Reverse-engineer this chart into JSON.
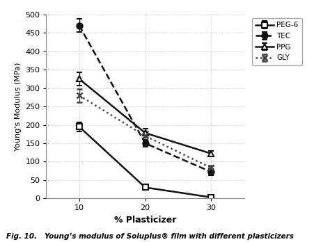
{
  "x_values": [
    10,
    20,
    30
  ],
  "series_order": [
    "PEG-6",
    "TEC",
    "PPG",
    "GLY"
  ],
  "series": {
    "PEG-6": {
      "y": [
        195,
        30,
        3
      ],
      "yerr": [
        12,
        4,
        2
      ],
      "color": "#111111",
      "linestyle": "-",
      "marker": "s",
      "markerfacecolor": "white",
      "markeredgewidth": 1.5,
      "label": "PEG-6"
    },
    "TEC": {
      "y": [
        470,
        150,
        72
      ],
      "yerr": [
        18,
        10,
        8
      ],
      "color": "#111111",
      "linestyle": "--",
      "marker": "o",
      "markerfacecolor": "#111111",
      "markeredgewidth": 1.5,
      "label": "TEC"
    },
    "PPG": {
      "y": [
        325,
        178,
        122
      ],
      "yerr": [
        18,
        12,
        7
      ],
      "color": "#111111",
      "linestyle": "-",
      "marker": "^",
      "markerfacecolor": "white",
      "markeredgewidth": 1.5,
      "label": "PPG"
    },
    "GLY": {
      "y": [
        280,
        170,
        83
      ],
      "yerr": [
        18,
        13,
        7
      ],
      "color": "#444444",
      "linestyle": ":",
      "marker": "x",
      "markerfacecolor": "#444444",
      "markeredgewidth": 1.8,
      "label": "GLY"
    }
  },
  "xlabel": "% Plasticizer",
  "ylabel": "Young's Modulus (MPa)",
  "ylim": [
    0,
    500
  ],
  "yticks": [
    0,
    50,
    100,
    150,
    200,
    250,
    300,
    350,
    400,
    450,
    500
  ],
  "xticks": [
    10,
    20,
    30
  ],
  "xlim": [
    5,
    35
  ],
  "caption": "Fig. 10.   Young’s modulus of Soluplus® film with different plasticizers",
  "background_color": "#ffffff",
  "grid_color": "#bbbbbb"
}
